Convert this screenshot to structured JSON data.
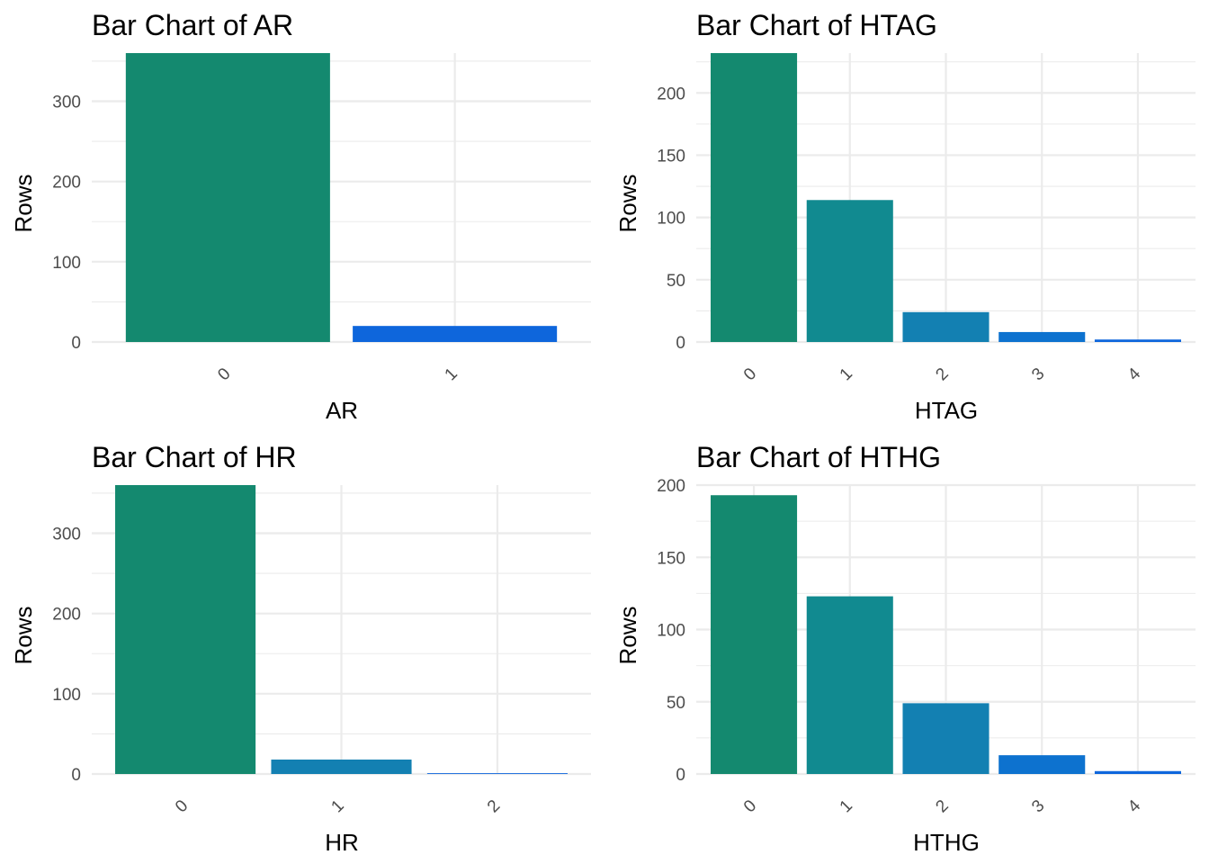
{
  "chart_data": [
    {
      "type": "bar",
      "title": "Bar Chart of AR",
      "xlabel": "AR",
      "ylabel": "Rows",
      "categories": [
        "0",
        "1"
      ],
      "values": [
        360,
        20
      ],
      "ylim": [
        0,
        360
      ],
      "yticks": [
        0,
        100,
        200,
        300
      ],
      "ytick_labels": [
        "0",
        "100",
        "200",
        "300"
      ],
      "colors": [
        "#14896F",
        "#0E66DC"
      ],
      "grid": true,
      "legend": "none"
    },
    {
      "type": "bar",
      "title": "Bar Chart of HTAG",
      "xlabel": "HTAG",
      "ylabel": "Rows",
      "categories": [
        "0",
        "1",
        "2",
        "3",
        "4"
      ],
      "values": [
        232,
        114,
        24,
        8,
        2
      ],
      "ylim": [
        0,
        232
      ],
      "yticks": [
        0,
        50,
        100,
        150,
        200
      ],
      "ytick_labels": [
        "0",
        "50",
        "100",
        "150",
        "200"
      ],
      "colors": [
        "#14896F",
        "#118A90",
        "#1380B2",
        "#0D72CF",
        "#0E66DC"
      ],
      "grid": true,
      "legend": "none"
    },
    {
      "type": "bar",
      "title": "Bar Chart of HR",
      "xlabel": "HR",
      "ylabel": "Rows",
      "categories": [
        "0",
        "1",
        "2"
      ],
      "values": [
        360,
        18,
        1
      ],
      "ylim": [
        0,
        360
      ],
      "yticks": [
        0,
        100,
        200,
        300
      ],
      "ytick_labels": [
        "0",
        "100",
        "200",
        "300"
      ],
      "colors": [
        "#14896F",
        "#1380B2",
        "#0E66DC"
      ],
      "grid": true,
      "legend": "none"
    },
    {
      "type": "bar",
      "title": "Bar Chart of HTHG",
      "xlabel": "HTHG",
      "ylabel": "Rows",
      "categories": [
        "0",
        "1",
        "2",
        "3",
        "4"
      ],
      "values": [
        193,
        123,
        49,
        13,
        2
      ],
      "ylim": [
        0,
        200
      ],
      "yticks": [
        0,
        50,
        100,
        150,
        200
      ],
      "ytick_labels": [
        "0",
        "50",
        "100",
        "150",
        "200"
      ],
      "colors": [
        "#14896F",
        "#118A90",
        "#1380B2",
        "#0D72CF",
        "#0E66DC"
      ],
      "grid": true,
      "legend": "none"
    }
  ]
}
